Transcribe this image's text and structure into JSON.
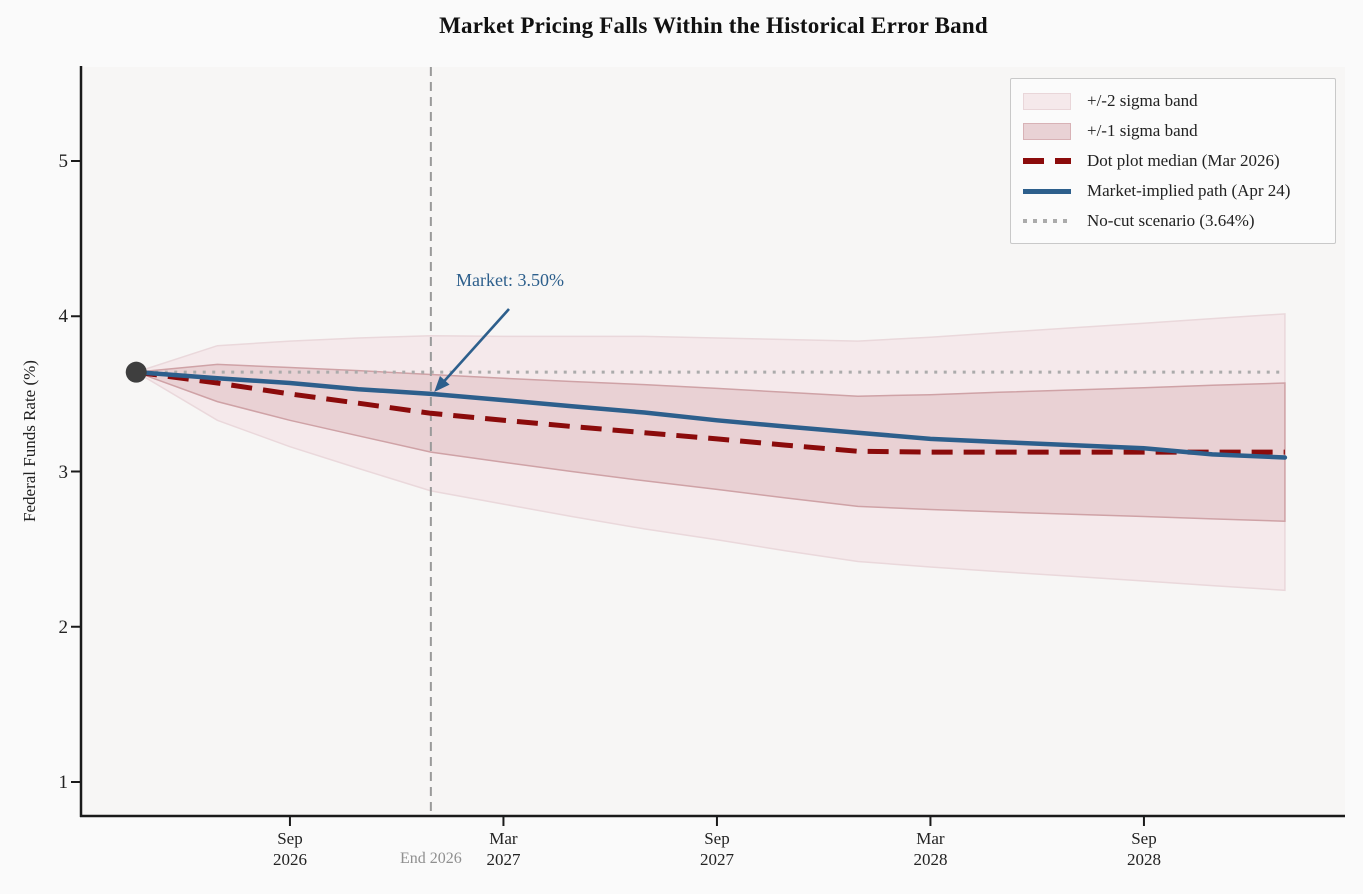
{
  "title": "Market Pricing Falls Within the Historical Error Band",
  "axes": {
    "ylabel": "Federal Funds Rate (%)",
    "y_ticks": [
      "1",
      "2",
      "3",
      "4",
      "5"
    ],
    "x_ticks": [
      {
        "month": "Sep",
        "year": "2026"
      },
      {
        "month": "Mar",
        "year": "2027"
      },
      {
        "month": "Sep",
        "year": "2027"
      },
      {
        "month": "Mar",
        "year": "2028"
      },
      {
        "month": "Sep",
        "year": "2028"
      }
    ],
    "end_label": "End 2026"
  },
  "annotation": {
    "text": "Market: 3.50%"
  },
  "legend": {
    "items": [
      {
        "label": "+/-2 sigma band",
        "type": "band",
        "fill": "#f5e9eb",
        "edge": "#e9d6d9"
      },
      {
        "label": "+/-1 sigma band",
        "type": "band",
        "fill": "#e9d2d5",
        "edge": "#d8b2b6"
      },
      {
        "label": "Dot plot median (Mar 2026)",
        "type": "dashed",
        "color": "#8b0b0b"
      },
      {
        "label": "Market-implied path (Apr 24)",
        "type": "solid",
        "color": "#2d5f8c"
      },
      {
        "label": "No-cut scenario (3.64%)",
        "type": "dotted",
        "color": "#ababab"
      }
    ]
  },
  "colors": {
    "band2_fill": "#f5e9eb",
    "band2_edge": "#ead8db",
    "band1_fill": "#e9d1d4",
    "band1_edge": "#cfa2a6",
    "median": "#8b0b0b",
    "market": "#2d5f8c",
    "no_cut": "#ababab",
    "vline": "#9a9a9a",
    "dot": "#3e3e3e",
    "spine": "#1a1a1a",
    "tick": "#1a1a1a",
    "plot_bg": "#f7f6f5",
    "fig_bg": "#fafafa",
    "annotation": "#2d5f8c",
    "end_label": "#8f8f8f"
  },
  "chart_data": {
    "type": "line",
    "title": "Market Pricing Falls Within the Historical Error Band",
    "xlabel": "",
    "ylabel": "Federal Funds Rate (%)",
    "x_axis": {
      "unit": "decimal_year",
      "range": [
        2026.18,
        2029.14
      ],
      "ticks": [
        2026.67,
        2027.17,
        2027.67,
        2028.17,
        2028.67
      ],
      "tick_labels": [
        "Sep 2026",
        "Mar 2027",
        "Sep 2027",
        "Mar 2028",
        "Sep 2028"
      ]
    },
    "y_axis": {
      "range": [
        0.79,
        5.61
      ],
      "ticks": [
        1,
        2,
        3,
        4,
        5
      ],
      "grid": false
    },
    "legend_position": "upper right",
    "x": [
      2026.31,
      2026.5,
      2026.67,
      2026.83,
      2027.0,
      2027.17,
      2027.33,
      2027.5,
      2027.67,
      2027.83,
      2028.0,
      2028.17,
      2028.33,
      2028.5,
      2028.67,
      2028.83,
      2029.0
    ],
    "series": [
      {
        "name": "Dot plot median (Mar 2026)",
        "style": "dashed",
        "color": "#8b0b0b",
        "values": [
          3.64,
          3.57,
          3.5,
          3.44,
          3.375,
          3.33,
          3.29,
          3.25,
          3.21,
          3.17,
          3.13,
          3.125,
          3.125,
          3.125,
          3.125,
          3.125,
          3.125
        ]
      },
      {
        "name": "Market-implied path (Apr 24)",
        "style": "solid",
        "color": "#2d5f8c",
        "values": [
          3.64,
          3.6,
          3.57,
          3.53,
          3.5,
          3.46,
          3.42,
          3.38,
          3.33,
          3.29,
          3.25,
          3.21,
          3.19,
          3.17,
          3.15,
          3.11,
          3.09
        ]
      }
    ],
    "sigma": [
      0.0,
      0.12,
      0.17,
      0.21,
      0.25,
      0.27,
      0.29,
      0.31,
      0.325,
      0.34,
      0.355,
      0.37,
      0.385,
      0.4,
      0.415,
      0.43,
      0.445
    ],
    "bands": [
      {
        "name": "+/-1 sigma band",
        "center": "Dot plot median (Mar 2026)",
        "sigma_multiple": 1
      },
      {
        "name": "+/-2 sigma band",
        "center": "Dot plot median (Mar 2026)",
        "sigma_multiple": 2
      }
    ],
    "no_cut_level": 3.64,
    "vline": {
      "x": 2027.0,
      "label": "End 2026"
    },
    "start_dot": {
      "x": 2026.31,
      "y": 3.64
    },
    "annotation": {
      "text": "Market: 3.50%",
      "x": 2027.0,
      "y": 3.5
    }
  }
}
